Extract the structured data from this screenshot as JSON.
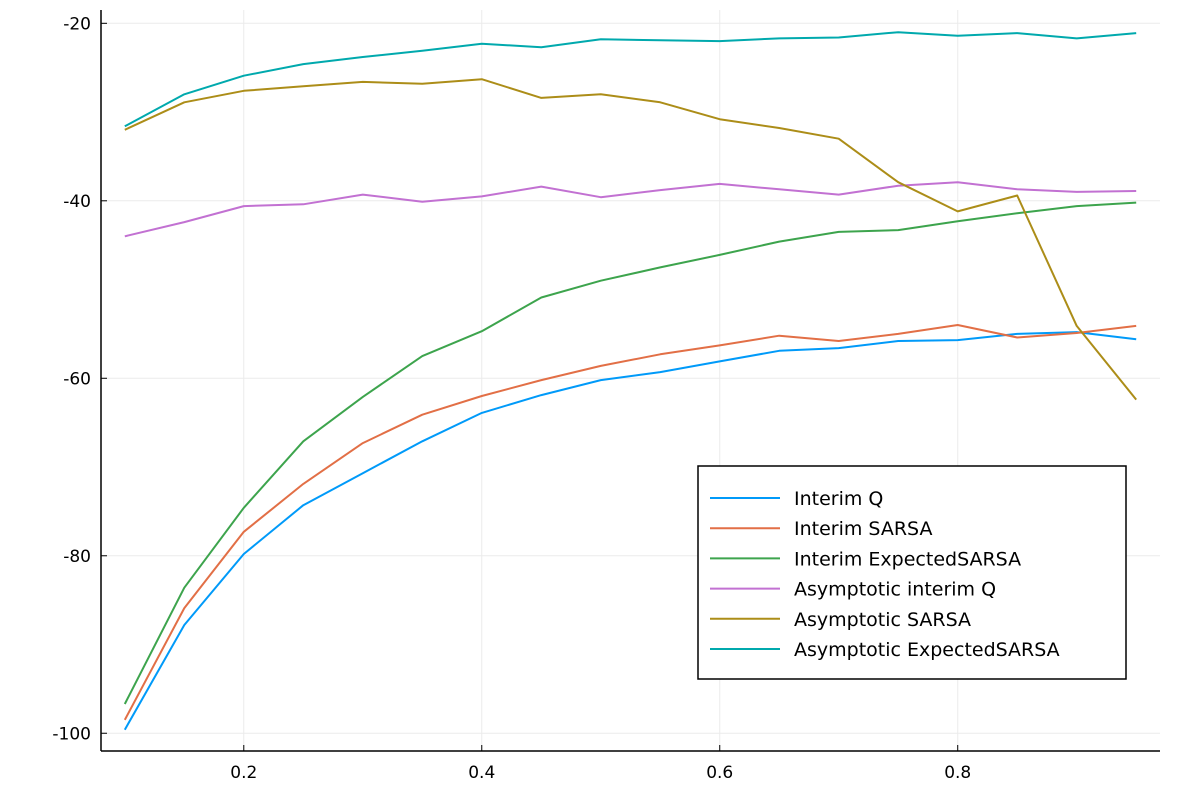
{
  "chart_data": {
    "type": "line",
    "title": "",
    "xlabel": "",
    "ylabel": "",
    "xlim": [
      0.08,
      0.97
    ],
    "ylim": [
      -102,
      -18.5
    ],
    "x_ticks": [
      0.2,
      0.4,
      0.6,
      0.8
    ],
    "x_tick_labels": [
      "0.2",
      "0.4",
      "0.6",
      "0.8"
    ],
    "y_ticks": [
      -20,
      -40,
      -60,
      -80,
      -100
    ],
    "y_tick_labels": [
      "-20",
      "-40",
      "-60",
      "-80",
      "-100"
    ],
    "grid": true,
    "legend_position": "lower-right",
    "x": [
      0.1,
      0.15,
      0.2,
      0.25,
      0.3,
      0.35,
      0.4,
      0.45,
      0.5,
      0.55,
      0.6,
      0.65,
      0.7,
      0.75,
      0.8,
      0.85,
      0.9,
      0.95
    ],
    "series": [
      {
        "name": "Interim Q",
        "color": "#009af9",
        "values": [
          -99.6,
          -87.8,
          -79.8,
          -74.3,
          -70.7,
          -67.1,
          -63.9,
          -61.9,
          -60.2,
          -59.3,
          -58.1,
          -56.9,
          -56.6,
          -55.8,
          -55.7,
          -55.0,
          -54.8,
          -55.6
        ]
      },
      {
        "name": "Interim SARSA",
        "color": "#e26f46",
        "values": [
          -98.5,
          -85.9,
          -77.3,
          -71.9,
          -67.3,
          -64.1,
          -62.0,
          -60.2,
          -58.6,
          -57.3,
          -56.3,
          -55.2,
          -55.8,
          -55.0,
          -54.0,
          -55.4,
          -54.9,
          -54.1
        ]
      },
      {
        "name": "Interim ExpectedSARSA",
        "color": "#3da44d",
        "values": [
          -96.7,
          -83.6,
          -74.6,
          -67.1,
          -62.1,
          -57.5,
          -54.7,
          -50.9,
          -49.0,
          -47.5,
          -46.1,
          -44.6,
          -43.5,
          -43.3,
          -42.3,
          -41.4,
          -40.6,
          -40.2
        ]
      },
      {
        "name": "Asymptotic interim Q",
        "color": "#c271d2",
        "values": [
          -44.0,
          -42.4,
          -40.6,
          -40.4,
          -39.3,
          -40.1,
          -39.5,
          -38.4,
          -39.6,
          -38.8,
          -38.1,
          -38.7,
          -39.3,
          -38.3,
          -37.9,
          -38.7,
          -39.0,
          -38.9
        ]
      },
      {
        "name": "Asymptotic SARSA",
        "color": "#ac8d18",
        "values": [
          -32.0,
          -28.9,
          -27.6,
          -27.1,
          -26.6,
          -26.8,
          -26.3,
          -28.4,
          -28.0,
          -28.9,
          -30.8,
          -31.8,
          -33.0,
          -37.9,
          -41.2,
          -39.4,
          -54.1,
          -62.4
        ]
      },
      {
        "name": "Asymptotic ExpectedSARSA",
        "color": "#00a9ad",
        "values": [
          -31.6,
          -28.0,
          -25.9,
          -24.6,
          -23.8,
          -23.1,
          -22.3,
          -22.7,
          -21.8,
          -21.9,
          -22.0,
          -21.7,
          -21.6,
          -21.0,
          -21.4,
          -21.1,
          -21.7,
          -21.1
        ]
      }
    ]
  }
}
